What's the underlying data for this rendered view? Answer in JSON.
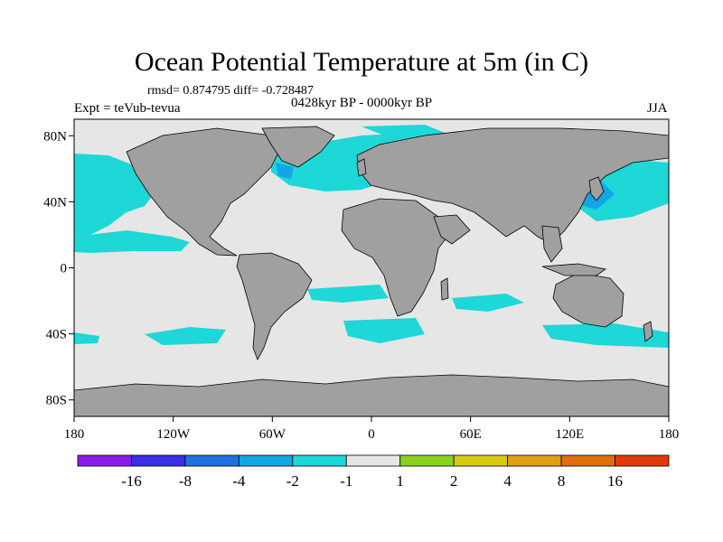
{
  "title": "Ocean Potential Temperature at 5m (in C)",
  "stats_line": "rmsd= 0.874795 diff= -0.728487",
  "experiment": "Expt = teVub-tevua",
  "period": "0428kyr BP - 0000kyr BP",
  "season": "JJA",
  "axes": {
    "y_ticks": [
      {
        "label": "80N",
        "lat": 80
      },
      {
        "label": "40N",
        "lat": 40
      },
      {
        "label": "0",
        "lat": 0
      },
      {
        "label": "40S",
        "lat": -40
      },
      {
        "label": "80S",
        "lat": -80
      }
    ],
    "x_ticks": [
      {
        "label": "180",
        "lon": -180
      },
      {
        "label": "120W",
        "lon": -120
      },
      {
        "label": "60W",
        "lon": -60
      },
      {
        "label": "0",
        "lon": 0
      },
      {
        "label": "60E",
        "lon": 60
      },
      {
        "label": "120E",
        "lon": 120
      },
      {
        "label": "180",
        "lon": 180
      }
    ],
    "lon_range": [
      -180,
      180
    ],
    "lat_range": [
      -90,
      90
    ]
  },
  "colorbar": {
    "colors": [
      "#8a1ee6",
      "#3a2ee6",
      "#1e72e0",
      "#12a6e6",
      "#1ed7d7",
      "#e6e6e6",
      "#8ad21e",
      "#d7cb12",
      "#e0a012",
      "#e06e0a",
      "#e03a0a"
    ],
    "labels": [
      "-16",
      "-8",
      "-4",
      "-2",
      "-1",
      "1",
      "2",
      "4",
      "8",
      "16"
    ]
  },
  "colors": {
    "land": "#a0a0a0",
    "ocean_neutral": "#e6e6e6",
    "cool_anomaly": "#1ed7d7",
    "strong_cool_anomaly": "#12a6e6"
  }
}
